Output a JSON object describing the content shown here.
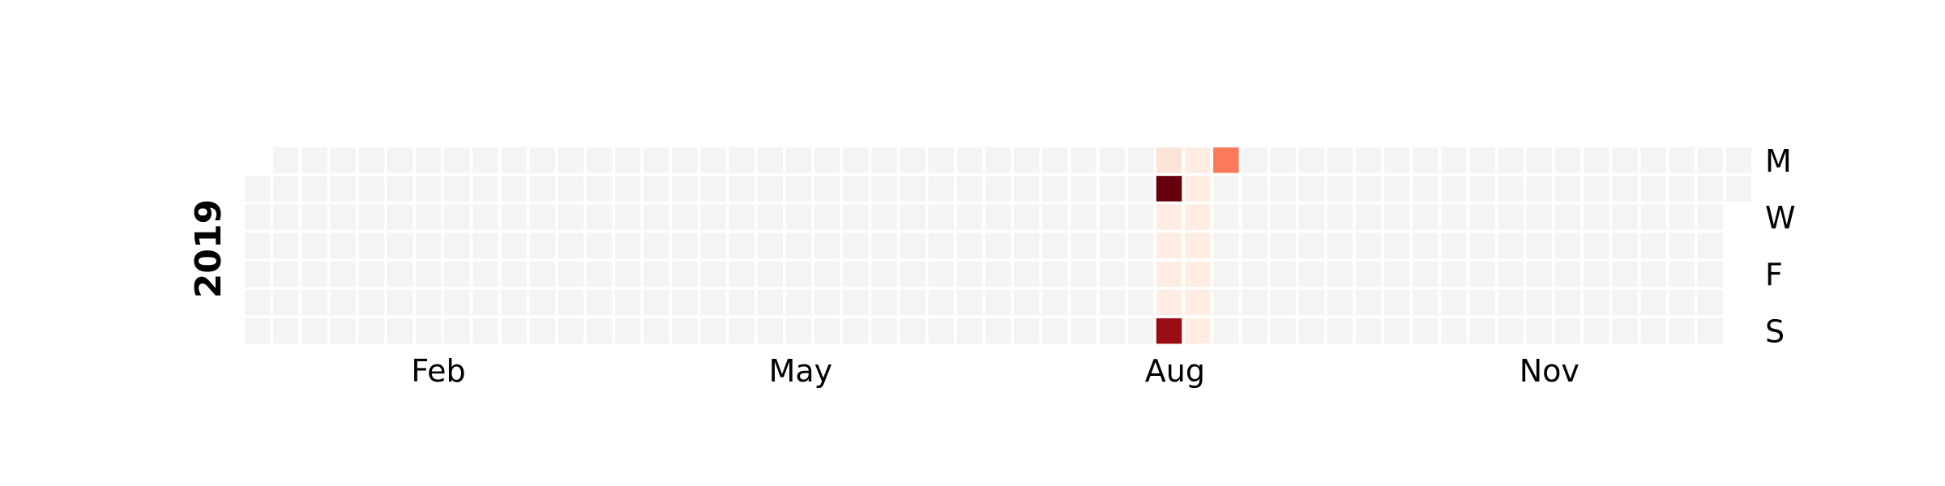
{
  "chart_data": {
    "type": "heatmap",
    "title": "",
    "year_label": "2019",
    "start_date": "2019-01-01",
    "end_date": "2019-12-31",
    "month_tick_labels": [
      "Feb",
      "May",
      "Aug",
      "Nov"
    ],
    "weekday_tick_labels": [
      "M",
      "W",
      "F",
      "S"
    ],
    "colormap": "Reds",
    "empty_color": "#f4f4f4",
    "values": [
      {
        "date": "2019-08-12",
        "value": 0.1
      },
      {
        "date": "2019-08-13",
        "value": 1.0
      },
      {
        "date": "2019-08-14",
        "value": 0.05
      },
      {
        "date": "2019-08-15",
        "value": 0.05
      },
      {
        "date": "2019-08-16",
        "value": 0.05
      },
      {
        "date": "2019-08-17",
        "value": 0.05
      },
      {
        "date": "2019-08-18",
        "value": 0.9
      },
      {
        "date": "2019-08-19",
        "value": 0.05
      },
      {
        "date": "2019-08-20",
        "value": 0.05
      },
      {
        "date": "2019-08-21",
        "value": 0.05
      },
      {
        "date": "2019-08-22",
        "value": 0.05
      },
      {
        "date": "2019-08-23",
        "value": 0.05
      },
      {
        "date": "2019-08-24",
        "value": 0.05
      },
      {
        "date": "2019-08-25",
        "value": 0.05
      },
      {
        "date": "2019-08-26",
        "value": 0.45
      }
    ]
  }
}
